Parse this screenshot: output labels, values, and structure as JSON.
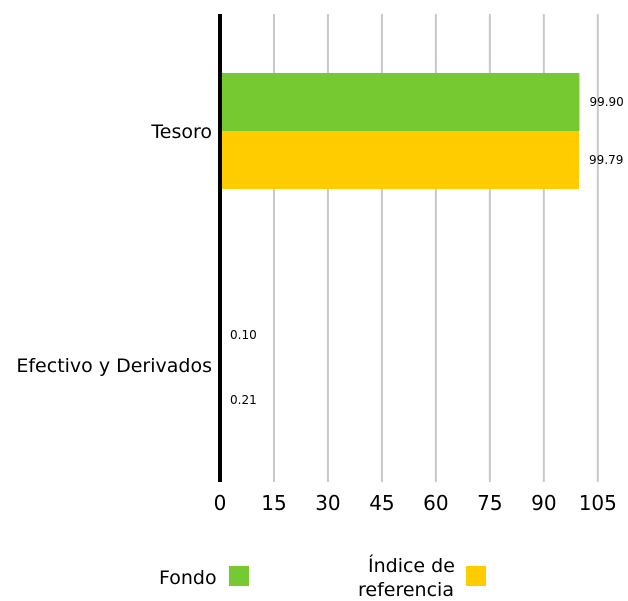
{
  "chart_data": {
    "type": "bar",
    "orientation": "horizontal",
    "categories": [
      "Tesoro",
      "Efectivo y Derivados"
    ],
    "series": [
      {
        "name": "Fondo",
        "values": [
          99.9,
          0.1
        ],
        "value_labels": [
          "99.90",
          "0.10"
        ],
        "color": "#76c931"
      },
      {
        "name": "Índice de referencia",
        "values": [
          99.79,
          0.21
        ],
        "value_labels": [
          "99.79",
          "0.21"
        ],
        "color": "#ffcc00"
      }
    ],
    "x_ticks": [
      "0",
      "15",
      "30",
      "45",
      "60",
      "75",
      "90",
      "105"
    ],
    "xlim": [
      0,
      105
    ],
    "grid": "vertical",
    "legend_placement": "bottom"
  },
  "legend": {
    "fund_label": "Fondo",
    "benchmark_label_line1": "Índice de",
    "benchmark_label_line2": "referencia"
  }
}
